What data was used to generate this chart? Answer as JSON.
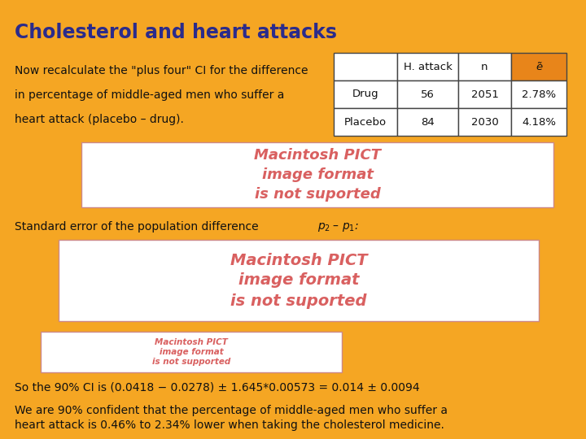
{
  "background_color": "#F5A623",
  "title": "Cholesterol and heart attacks",
  "title_color": "#2B2B8B",
  "title_fontsize": 17,
  "body_text_color": "#111111",
  "intro_text_line1": "Now recalculate the \"plus four\" CI for the difference",
  "intro_text_line2": "in percentage of middle-aged men who suffer a",
  "intro_text_line3": "heart attack (placebo – drug).",
  "table_headers": [
    "",
    "H. attack",
    "n",
    "ẽ"
  ],
  "table_header_bg": "#E8851A",
  "table_row1": [
    "Drug",
    "56",
    "2051",
    "2.78%"
  ],
  "table_row2": [
    "Placebo",
    "84",
    "2030",
    "4.18%"
  ],
  "ph_text_color": "#D96060",
  "ph1_text": "Macintosh PICT\nimage format\nis not suported",
  "ph2_text": "Macintosh PICT\nimage format\nis not suported",
  "ph3_text": "Macintosh PICT\nimage format\nis not supported",
  "std_err_text": "Standard error of the population difference ",
  "ci_text": "So the 90% CI is (0.0418 − 0.0278) ± 1.645*0.00573 = 0.014 ± 0.0094",
  "conclusion_line1": "We are 90% confident that the percentage of middle-aged men who suffer a",
  "conclusion_line2": "heart attack is 0.46% to 2.34% lower when taking the cholesterol medicine."
}
